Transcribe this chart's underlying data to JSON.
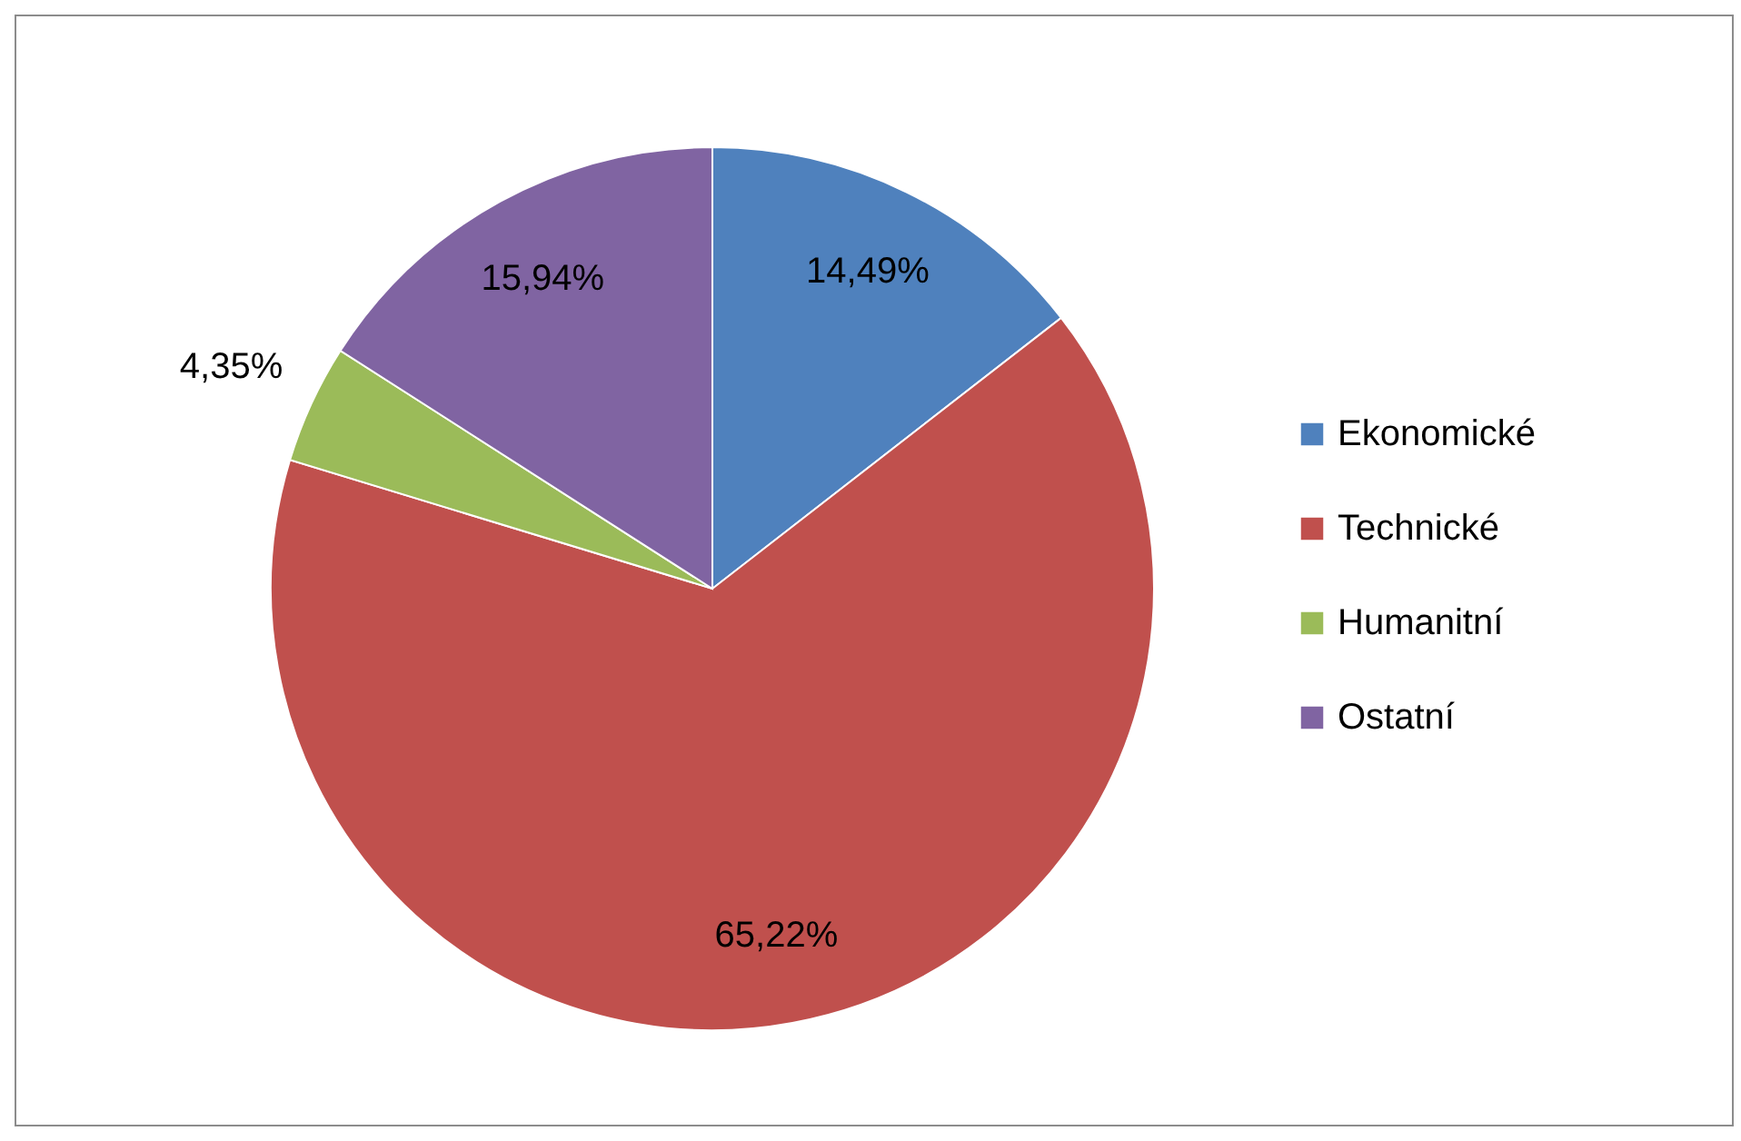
{
  "chart_data": {
    "type": "pie",
    "categories": [
      "Ekonomické",
      "Technické",
      "Humanitní",
      "Ostatní"
    ],
    "values": [
      14.49,
      65.22,
      4.35,
      15.94
    ],
    "colors": [
      "#4f81bd",
      "#c0504d",
      "#9bbb59",
      "#8064a2"
    ],
    "value_labels": [
      "14,49%",
      "65,22%",
      "4,35%",
      "15,94%"
    ],
    "legend": "right"
  }
}
